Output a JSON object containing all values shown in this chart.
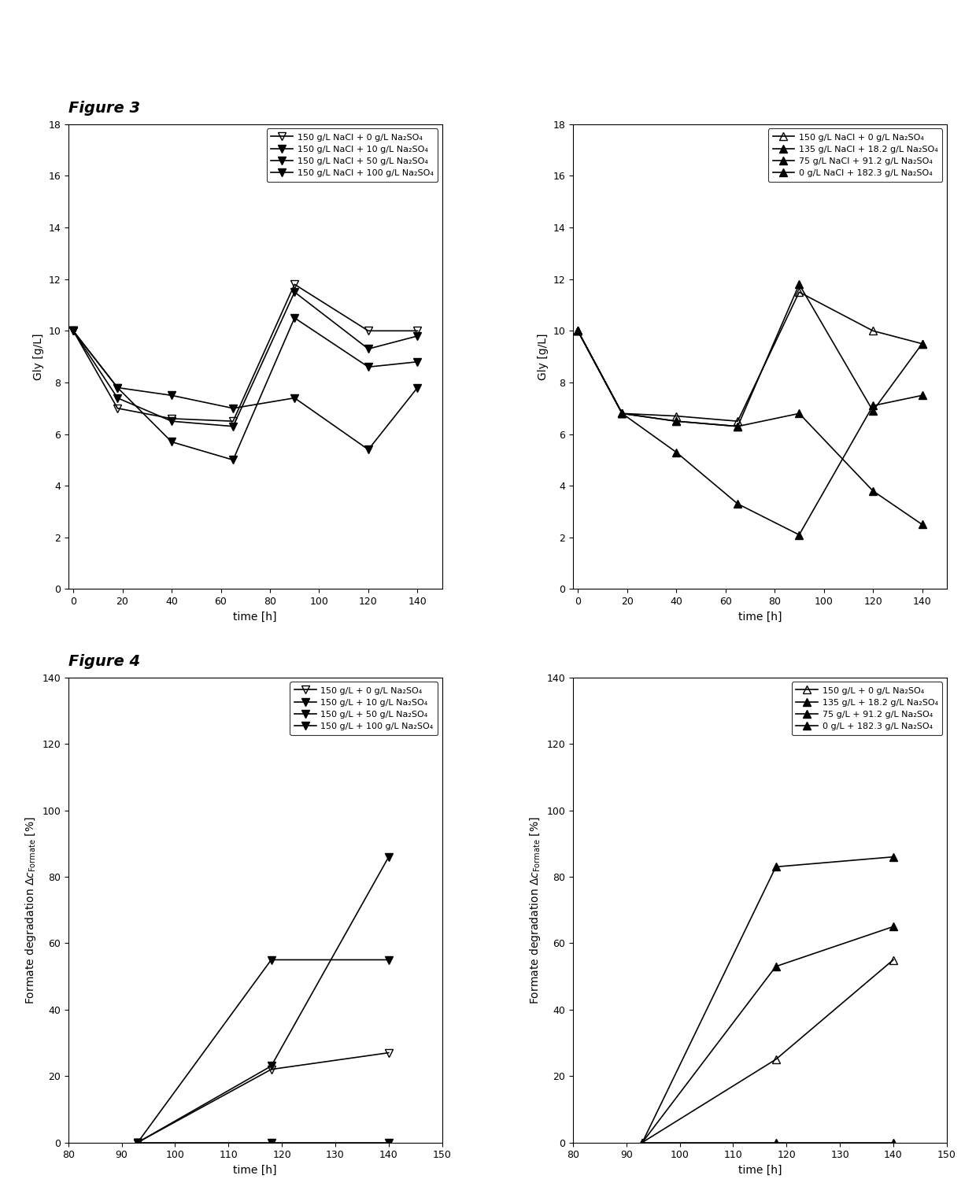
{
  "fig3_title": "Figure 3",
  "fig4_title": "Figure 4",
  "fig3_left": {
    "xlabel": "time [h]",
    "ylabel": "Gly [g/L]",
    "xlim": [
      -2,
      150
    ],
    "ylim": [
      0,
      18
    ],
    "xticks": [
      0,
      20,
      40,
      60,
      80,
      100,
      120,
      140
    ],
    "yticks": [
      0,
      2,
      4,
      6,
      8,
      10,
      12,
      14,
      16,
      18
    ],
    "series": [
      {
        "label": "150 g/L NaCl + 0 g/L Na₂SO₄",
        "x": [
          0,
          18,
          40,
          65,
          90,
          120,
          140
        ],
        "y": [
          10.0,
          7.0,
          6.6,
          6.5,
          11.8,
          10.0,
          10.0
        ],
        "marker": "v",
        "filled": false,
        "linestyle": "-",
        "color": "#000000",
        "zorder": 4
      },
      {
        "label": "150 g/L NaCl + 10 g/L Na₂SO₄",
        "x": [
          0,
          18,
          40,
          65,
          90,
          120,
          140
        ],
        "y": [
          10.0,
          7.4,
          6.5,
          6.3,
          11.5,
          9.3,
          9.8
        ],
        "marker": "v",
        "filled": true,
        "linestyle": "-",
        "color": "#000000",
        "zorder": 3
      },
      {
        "label": "150 g/L NaCl + 50 g/L Na₂SO₄",
        "x": [
          0,
          18,
          40,
          65,
          90,
          120,
          140
        ],
        "y": [
          10.0,
          7.8,
          5.7,
          5.0,
          10.5,
          8.6,
          8.8
        ],
        "marker": "v",
        "filled": true,
        "linestyle": "-",
        "color": "#000000",
        "zorder": 2
      },
      {
        "label": "150 g/L NaCl + 100 g/L Na₂SO₄",
        "x": [
          0,
          18,
          40,
          65,
          90,
          120,
          140
        ],
        "y": [
          10.0,
          7.8,
          7.5,
          7.0,
          7.4,
          5.4,
          7.8
        ],
        "marker": "v",
        "filled": true,
        "linestyle": "-",
        "color": "#000000",
        "zorder": 1
      }
    ]
  },
  "fig3_right": {
    "xlabel": "time [h]",
    "ylabel": "Gly [g/L]",
    "xlim": [
      -2,
      150
    ],
    "ylim": [
      0,
      18
    ],
    "xticks": [
      0,
      20,
      40,
      60,
      80,
      100,
      120,
      140
    ],
    "yticks": [
      0,
      2,
      4,
      6,
      8,
      10,
      12,
      14,
      16,
      18
    ],
    "series": [
      {
        "label": "150 g/L NaCl + 0 g/L Na₂SO₄",
        "x": [
          0,
          18,
          40,
          65,
          90,
          120,
          140
        ],
        "y": [
          10.0,
          6.8,
          6.7,
          6.5,
          11.5,
          10.0,
          9.5
        ],
        "marker": "^",
        "filled": false,
        "linestyle": "-",
        "color": "#000000",
        "zorder": 4
      },
      {
        "label": "135 g/L NaCl + 18.2 g/L Na₂SO₄",
        "x": [
          0,
          18,
          40,
          65,
          90,
          120,
          140
        ],
        "y": [
          10.0,
          6.8,
          6.5,
          6.3,
          11.8,
          6.9,
          9.5
        ],
        "marker": "^",
        "filled": true,
        "linestyle": "-",
        "color": "#000000",
        "zorder": 3
      },
      {
        "label": "75 g/L NaCl + 91.2 g/L Na₂SO₄",
        "x": [
          0,
          18,
          40,
          65,
          90,
          120,
          140
        ],
        "y": [
          10.0,
          6.8,
          5.3,
          3.3,
          2.1,
          7.1,
          7.5
        ],
        "marker": "^",
        "filled": true,
        "linestyle": "-",
        "color": "#000000",
        "zorder": 2
      },
      {
        "label": "0 g/L NaCl + 182.3 g/L Na₂SO₄",
        "x": [
          0,
          18,
          40,
          65,
          90,
          120,
          140
        ],
        "y": [
          10.0,
          6.8,
          6.5,
          6.3,
          6.8,
          3.8,
          2.5
        ],
        "marker": "^",
        "filled": true,
        "linestyle": "-",
        "color": "#000000",
        "zorder": 1
      }
    ]
  },
  "fig4_left": {
    "xlabel": "time [h]",
    "ylabel": "Formate degradation ΔcₜFormate [%]",
    "xlim": [
      80,
      150
    ],
    "ylim": [
      0,
      140
    ],
    "xticks": [
      80,
      90,
      100,
      110,
      120,
      130,
      140,
      150
    ],
    "yticks": [
      0,
      20,
      40,
      60,
      80,
      100,
      120,
      140
    ],
    "series": [
      {
        "label": "150 g/L + 0 g/L Na₂SO₄",
        "x": [
          93,
          118,
          140
        ],
        "y": [
          0,
          22,
          27
        ],
        "marker": "v",
        "filled": false,
        "linestyle": "-",
        "color": "#000000",
        "zorder": 4
      },
      {
        "label": "150 g/L + 10 g/L Na₂SO₄",
        "x": [
          93,
          118,
          140
        ],
        "y": [
          0,
          55,
          55
        ],
        "marker": "v",
        "filled": true,
        "linestyle": "-",
        "color": "#000000",
        "zorder": 3
      },
      {
        "label": "150 g/L + 50 g/L Na₂SO₄",
        "x": [
          93,
          118,
          140
        ],
        "y": [
          0,
          23,
          86
        ],
        "marker": "v",
        "filled": true,
        "linestyle": "-",
        "color": "#000000",
        "zorder": 2
      },
      {
        "label": "150 g/L + 100 g/L Na₂SO₄",
        "x": [
          93,
          118,
          140
        ],
        "y": [
          0,
          0,
          0
        ],
        "marker": "v",
        "filled": true,
        "linestyle": "-",
        "color": "#000000",
        "zorder": 1
      }
    ]
  },
  "fig4_right": {
    "xlabel": "time [h]",
    "ylabel": "Formate degradation ΔcₜFormate [%]",
    "xlim": [
      80,
      150
    ],
    "ylim": [
      0,
      140
    ],
    "xticks": [
      80,
      90,
      100,
      110,
      120,
      130,
      140,
      150
    ],
    "yticks": [
      0,
      20,
      40,
      60,
      80,
      100,
      120,
      140
    ],
    "series": [
      {
        "label": "150 g/L + 0 g/L Na₂SO₄",
        "x": [
          93,
          118,
          140
        ],
        "y": [
          0,
          25,
          55
        ],
        "marker": "^",
        "filled": false,
        "linestyle": "-",
        "color": "#000000",
        "zorder": 4
      },
      {
        "label": "135 g/L + 18.2 g/L Na₂SO₄",
        "x": [
          93,
          118,
          140
        ],
        "y": [
          0,
          83,
          86
        ],
        "marker": "^",
        "filled": true,
        "linestyle": "-",
        "color": "#000000",
        "zorder": 3
      },
      {
        "label": "75 g/L + 91.2 g/L Na₂SO₄",
        "x": [
          93,
          118,
          140
        ],
        "y": [
          0,
          53,
          65
        ],
        "marker": "^",
        "filled": true,
        "linestyle": "-",
        "color": "#000000",
        "zorder": 2
      },
      {
        "label": "0 g/L + 182.3 g/L Na₂SO₄",
        "x": [
          93,
          118,
          140
        ],
        "y": [
          0,
          0,
          0
        ],
        "marker": "^",
        "filled": true,
        "linestyle": "-",
        "color": "#000000",
        "zorder": 1
      }
    ]
  },
  "title_fontsize": 14,
  "axis_fontsize": 10,
  "tick_fontsize": 9,
  "legend_fontsize": 8,
  "markersize": 7,
  "linewidth": 1.2
}
